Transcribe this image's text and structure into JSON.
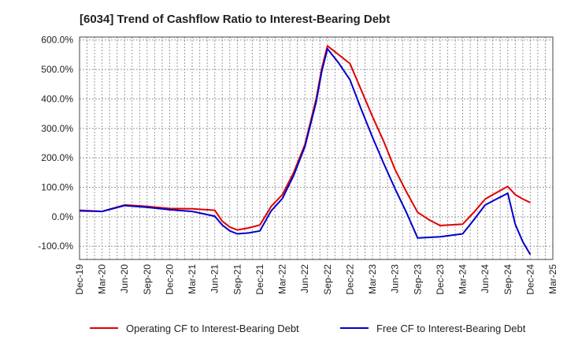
{
  "title": "[6034]  Trend of Cashflow Ratio to Interest-Bearing Debt",
  "chart_data": {
    "type": "line",
    "title": "[6034]  Trend of Cashflow Ratio to Interest-Bearing Debt",
    "xlabel": "",
    "ylabel": "",
    "ylim": [
      -145,
      610
    ],
    "yticks": [
      600,
      500,
      400,
      300,
      200,
      100,
      0,
      -100
    ],
    "ytick_labels": [
      "600.0%",
      "500.0%",
      "400.0%",
      "300.0%",
      "200.0%",
      "100.0%",
      "0.0%",
      "-100.0%"
    ],
    "x_labels": [
      "Dec-19",
      "Mar-20",
      "Jun-20",
      "Sep-20",
      "Dec-20",
      "Mar-21",
      "Jun-21",
      "Sep-21",
      "Dec-21",
      "Mar-22",
      "Jun-22",
      "Sep-22",
      "Dec-22",
      "Mar-23",
      "Jun-23",
      "Sep-23",
      "Dec-23",
      "Mar-24",
      "Jun-24",
      "Sep-24",
      "Dec-24",
      "Mar-25"
    ],
    "grid": true,
    "legend_position": "bottom",
    "series": [
      {
        "name": "Operating CF to Interest-Bearing Debt",
        "color": "#e00000",
        "points": [
          [
            0,
            22
          ],
          [
            1,
            18
          ],
          [
            2,
            40
          ],
          [
            3,
            35
          ],
          [
            4,
            28
          ],
          [
            5,
            27
          ],
          [
            6,
            22
          ],
          [
            6.33,
            -15
          ],
          [
            6.67,
            -35
          ],
          [
            7,
            -45
          ],
          [
            7.5,
            -38
          ],
          [
            8,
            -28
          ],
          [
            8.5,
            35
          ],
          [
            9,
            75
          ],
          [
            9.5,
            150
          ],
          [
            10,
            245
          ],
          [
            10.5,
            400
          ],
          [
            10.75,
            505
          ],
          [
            11,
            580
          ],
          [
            11.5,
            550
          ],
          [
            12,
            520
          ],
          [
            12.5,
            430
          ],
          [
            13,
            340
          ],
          [
            13.5,
            255
          ],
          [
            14,
            160
          ],
          [
            14.5,
            85
          ],
          [
            15,
            15
          ],
          [
            15.5,
            -10
          ],
          [
            16,
            -30
          ],
          [
            17,
            -25
          ],
          [
            17.5,
            15
          ],
          [
            18,
            60
          ],
          [
            18.5,
            82
          ],
          [
            19,
            103
          ],
          [
            19.33,
            75
          ],
          [
            19.67,
            60
          ],
          [
            20,
            48
          ]
        ]
      },
      {
        "name": "Free CF to Interest-Bearing Debt",
        "color": "#0000cc",
        "points": [
          [
            0,
            20
          ],
          [
            1,
            18
          ],
          [
            2,
            38
          ],
          [
            3,
            32
          ],
          [
            4,
            24
          ],
          [
            5,
            18
          ],
          [
            6,
            2
          ],
          [
            6.33,
            -28
          ],
          [
            6.67,
            -48
          ],
          [
            7,
            -58
          ],
          [
            7.5,
            -55
          ],
          [
            8,
            -48
          ],
          [
            8.5,
            20
          ],
          [
            9,
            62
          ],
          [
            9.5,
            140
          ],
          [
            10,
            238
          ],
          [
            10.5,
            390
          ],
          [
            10.75,
            495
          ],
          [
            11,
            570
          ],
          [
            11.5,
            522
          ],
          [
            12,
            465
          ],
          [
            12.5,
            365
          ],
          [
            13,
            270
          ],
          [
            13.5,
            180
          ],
          [
            14,
            95
          ],
          [
            14.5,
            15
          ],
          [
            15,
            -72
          ],
          [
            16,
            -68
          ],
          [
            17,
            -58
          ],
          [
            17.5,
            -10
          ],
          [
            18,
            40
          ],
          [
            18.5,
            60
          ],
          [
            19,
            80
          ],
          [
            19.33,
            -25
          ],
          [
            19.67,
            -85
          ],
          [
            20,
            -128
          ]
        ]
      }
    ]
  }
}
